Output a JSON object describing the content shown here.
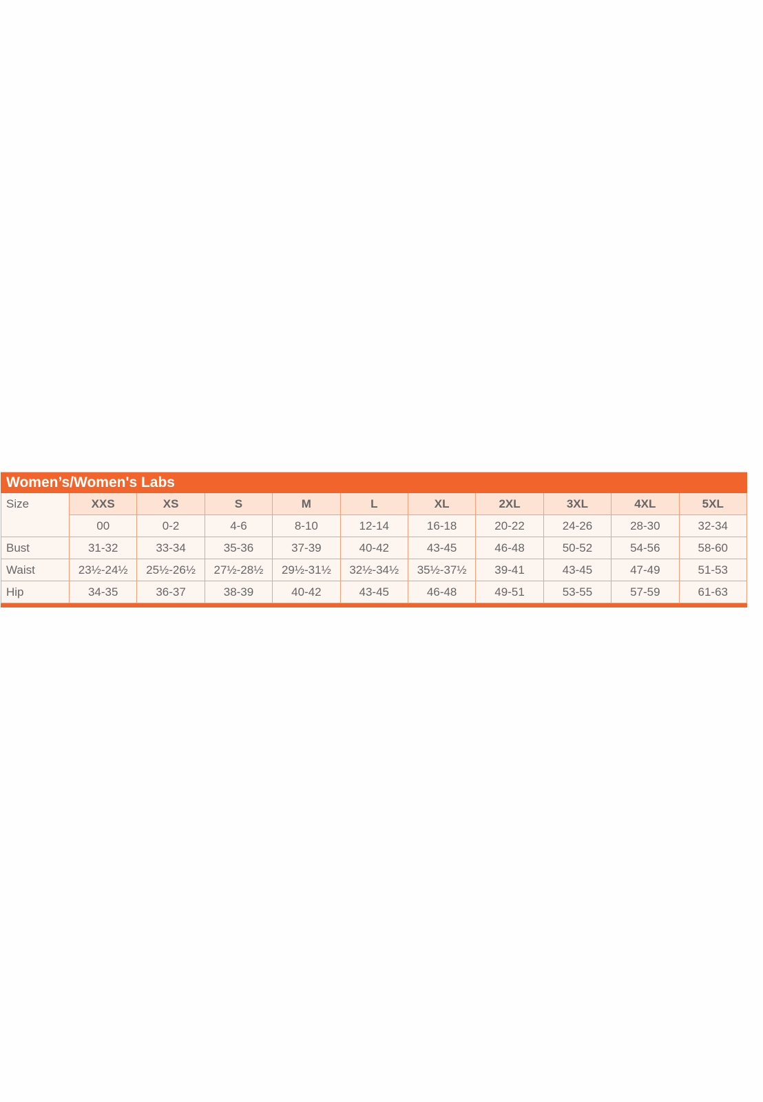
{
  "title": "Women’s/Women's Labs",
  "colors": {
    "accent": "#f1652c",
    "header_bg": "#fde3d4",
    "cell_bg": "#fdf5f0",
    "text": "#666666"
  },
  "table": {
    "size_label": "Size",
    "sizes": [
      "XXS",
      "XS",
      "S",
      "M",
      "L",
      "XL",
      "2XL",
      "3XL",
      "4XL",
      "5XL"
    ],
    "numeric_sizes": [
      "00",
      "0-2",
      "4-6",
      "8-10",
      "12-14",
      "16-18",
      "20-22",
      "24-26",
      "28-30",
      "32-34"
    ],
    "rows": [
      {
        "label": "Bust",
        "values": [
          "31-32",
          "33-34",
          "35-36",
          "37-39",
          "40-42",
          "43-45",
          "46-48",
          "50-52",
          "54-56",
          "58-60"
        ]
      },
      {
        "label": "Waist",
        "values": [
          "23½-24½",
          "25½-26½",
          "27½-28½",
          "29½-31½",
          "32½-34½",
          "35½-37½",
          "39-41",
          "43-45",
          "47-49",
          "51-53"
        ]
      },
      {
        "label": "Hip",
        "values": [
          "34-35",
          "36-37",
          "38-39",
          "40-42",
          "43-45",
          "46-48",
          "49-51",
          "53-55",
          "57-59",
          "61-63"
        ]
      }
    ]
  }
}
